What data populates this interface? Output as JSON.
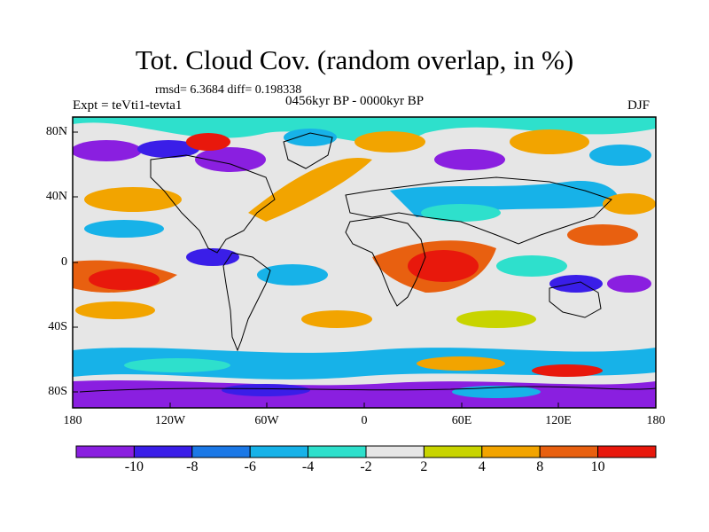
{
  "title": "Tot. Cloud Cov. (random overlap, in %)",
  "stats_line": "rmsd= 6.3684 diff= 0.198338",
  "experiment": "Expt = teVti1-tevta1",
  "period": "0456kyr BP - 0000kyr BP",
  "season": "DJF",
  "lat_labels": [
    "80N",
    "40N",
    "0",
    "40S",
    "80S"
  ],
  "lon_labels": [
    "180",
    "120W",
    "60W",
    "0",
    "60E",
    "120E",
    "180"
  ],
  "colorbar": {
    "labels": [
      "-10",
      "-8",
      "-6",
      "-4",
      "-2",
      "2",
      "4",
      "8",
      "10"
    ],
    "colors": [
      "#8a1fe0",
      "#3a1ee8",
      "#1b78e6",
      "#17b2e8",
      "#2ee0cc",
      "#e6e6e6",
      "#c8d400",
      "#f2a400",
      "#e86010",
      "#e8180c"
    ]
  }
}
